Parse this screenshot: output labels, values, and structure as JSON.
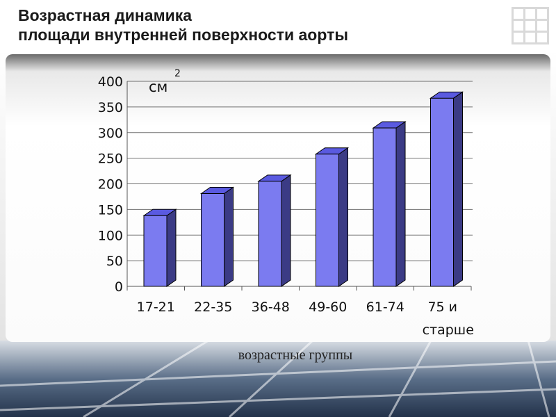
{
  "slide": {
    "title_line1": "Возрастная динамика",
    "title_line2": "площади внутренней поверхности аорты"
  },
  "chart_data": {
    "type": "bar",
    "style": "3d",
    "categories": [
      "17-21",
      "22-35",
      "36-48",
      "49-60",
      "61-74",
      "75 и старше"
    ],
    "category_lines": [
      [
        "17-21"
      ],
      [
        "22-35"
      ],
      [
        "36-48"
      ],
      [
        "49-60"
      ],
      [
        "61-74"
      ],
      [
        "75 и",
        "старше"
      ]
    ],
    "values": [
      138,
      181,
      205,
      258,
      309,
      367
    ],
    "ylim": [
      0,
      400
    ],
    "yticks": [
      0,
      50,
      100,
      150,
      200,
      250,
      300,
      350,
      400
    ],
    "ylabel": "см",
    "ylabel_sup": "2",
    "xlabel": "возрастные группы",
    "grid": true,
    "legend": "none",
    "colors": {
      "bar_front": "#7b7bf0",
      "bar_top": "#5a5ae0",
      "bar_side": "#3b3b85",
      "gridline": "#707070",
      "title": "#1a1a1a"
    }
  }
}
